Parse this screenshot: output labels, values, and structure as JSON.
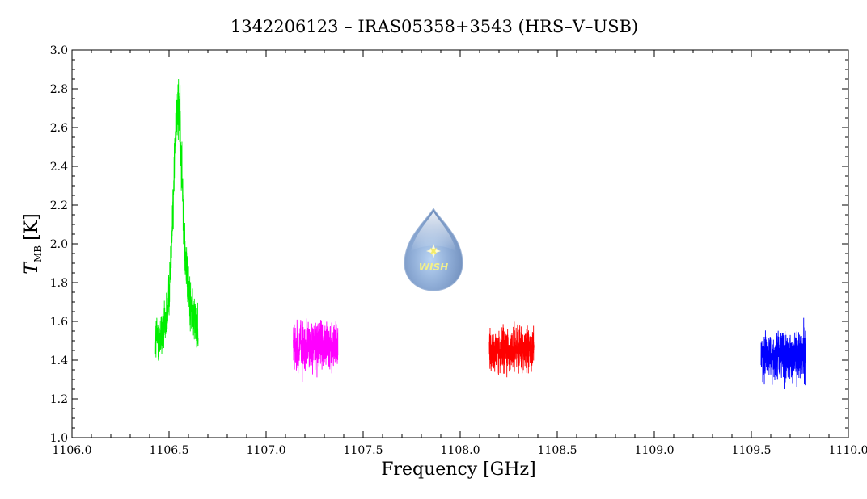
{
  "chart_data": {
    "type": "line",
    "title": "1342206123 – IRAS05358+3543 (HRS–V–USB)",
    "xlabel": "Frequency [GHz]",
    "ylabel_main": "T",
    "ylabel_sub": "MB",
    "ylabel_unit": "[K]",
    "xlim": [
      1106.0,
      1110.0
    ],
    "ylim": [
      1.0,
      3.0
    ],
    "x_ticks": [
      "1106.0",
      "1106.5",
      "1107.0",
      "1107.5",
      "1108.0",
      "1108.5",
      "1109.0",
      "1109.5",
      "1110.0"
    ],
    "y_ticks": [
      "1.0",
      "1.2",
      "1.4",
      "1.6",
      "1.8",
      "2.0",
      "2.2",
      "2.4",
      "2.6",
      "2.8",
      "3.0"
    ],
    "grid": false,
    "series": [
      {
        "color": "#00ee00",
        "x_range": [
          1106.43,
          1106.65
        ],
        "baseline": 1.5,
        "noise": 0.09,
        "peak": {
          "center": 1106.545,
          "amplitude": 1.2,
          "width": 0.025
        },
        "y_min": 1.31,
        "y_max": 2.87
      },
      {
        "color": "#ff00ff",
        "x_range": [
          1107.14,
          1107.37
        ],
        "baseline": 1.47,
        "noise": 0.085,
        "y_min": 1.24,
        "y_max": 1.73
      },
      {
        "color": "#ff0000",
        "x_range": [
          1108.15,
          1108.38
        ],
        "baseline": 1.45,
        "noise": 0.08,
        "y_min": 1.23,
        "y_max": 1.66
      },
      {
        "color": "#0000ff",
        "x_range": [
          1109.55,
          1109.78
        ],
        "baseline": 1.42,
        "noise": 0.09,
        "y_min": 1.12,
        "y_max": 1.73
      }
    ]
  },
  "logo": {
    "text": "WISH",
    "name": "wish-logo"
  }
}
